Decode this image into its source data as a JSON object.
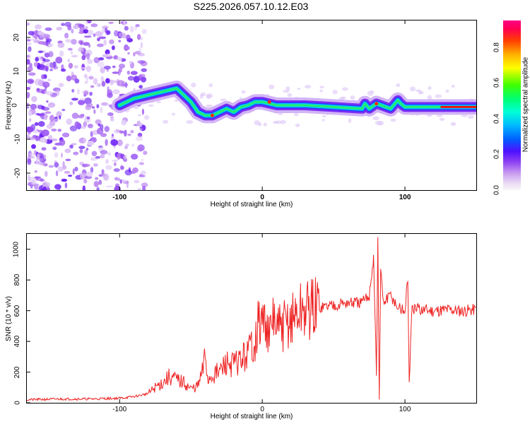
{
  "title": "S225.2026.057.10.12.E03",
  "chart_data": [
    {
      "type": "heatmap",
      "name": "spectrogram",
      "xlabel": "Height of straight line (km)",
      "ylabel": "Frequency (Hz)",
      "xlim": [
        -165,
        150
      ],
      "ylim": [
        -25,
        25
      ],
      "xticks": [
        -100,
        0,
        100
      ],
      "yticks": [
        20,
        10,
        0,
        -10,
        -20
      ],
      "colorbar": {
        "label": "Normalized spectral amplitude",
        "range": [
          0.0,
          0.95
        ],
        "ticks": [
          0.0,
          0.2,
          0.4,
          0.6,
          0.8
        ]
      },
      "ridge": {
        "x": [
          -100,
          -90,
          -80,
          -70,
          -60,
          -50,
          -45,
          -40,
          -35,
          -30,
          -25,
          -20,
          -15,
          -10,
          -5,
          0,
          10,
          30,
          50,
          70,
          72,
          75,
          80,
          90,
          95,
          97,
          100,
          120,
          140,
          150
        ],
        "y": [
          0,
          2,
          3,
          4,
          5,
          1,
          -2,
          -3,
          -3,
          -2,
          -1,
          -2,
          -0.5,
          0,
          1,
          1,
          0,
          0,
          -0.5,
          -1,
          0.5,
          -1,
          0.5,
          -1,
          1.5,
          0.5,
          -0.5,
          -0.5,
          -0.5,
          -0.5
        ]
      },
      "noise_region": [
        -165,
        -90
      ]
    },
    {
      "type": "line",
      "name": "snr",
      "xlabel": "Height of straight line (km)",
      "ylabel": "SNR (10 * v/v)",
      "xlim": [
        -165,
        150
      ],
      "ylim": [
        0,
        1100
      ],
      "xticks": [
        -100,
        0,
        100
      ],
      "yticks": [
        0,
        200,
        400,
        600,
        800,
        1000
      ],
      "color": "#ee2222",
      "x": [
        -165,
        -140,
        -120,
        -100,
        -90,
        -80,
        -75,
        -70,
        -65,
        -60,
        -55,
        -50,
        -45,
        -42,
        -40,
        -38,
        -35,
        -30,
        -25,
        -20,
        -15,
        -10,
        -8,
        -5,
        -3,
        0,
        3,
        5,
        8,
        10,
        15,
        20,
        25,
        30,
        40,
        50,
        60,
        70,
        75,
        78,
        80,
        81,
        82,
        83,
        85,
        90,
        95,
        100,
        102,
        103,
        105,
        110,
        120,
        130,
        140,
        150
      ],
      "y": [
        20,
        25,
        25,
        30,
        40,
        60,
        100,
        130,
        170,
        150,
        130,
        90,
        110,
        200,
        300,
        150,
        180,
        200,
        260,
        250,
        280,
        320,
        380,
        400,
        500,
        520,
        540,
        400,
        580,
        470,
        500,
        530,
        580,
        600,
        620,
        640,
        650,
        650,
        700,
        950,
        200,
        1050,
        20,
        850,
        650,
        700,
        620,
        600,
        800,
        150,
        600,
        610,
        600,
        610,
        600,
        610
      ]
    }
  ]
}
